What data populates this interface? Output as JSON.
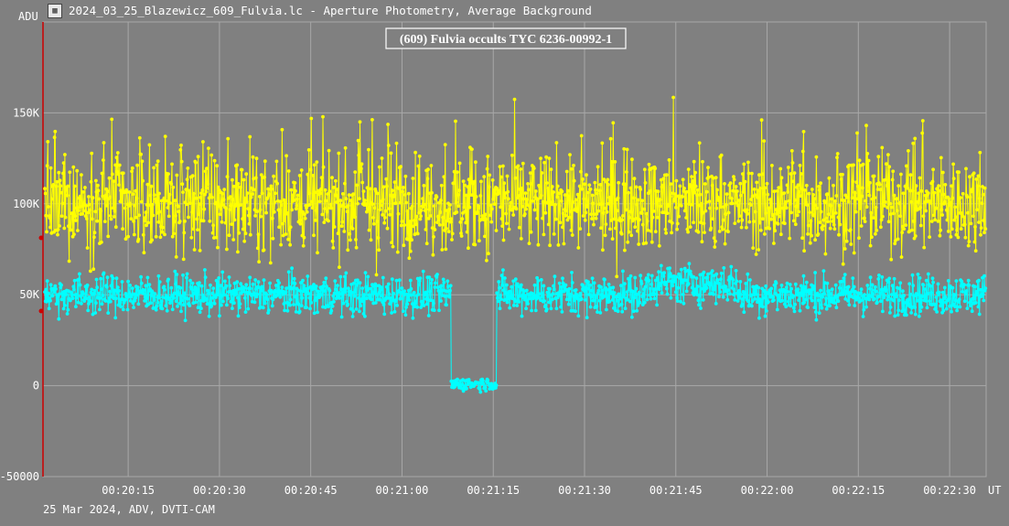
{
  "window": {
    "icon": "chart-app-icon",
    "title": "2024_03_25_Blazewicz_609_Fulvia.lc - Aperture Photometry, Average Background"
  },
  "footer": "25 Mar 2024, ADV, DVTI-CAM",
  "colors": {
    "background": "#808080",
    "grid": "#a8a8a8",
    "axis_text": "#ffffff",
    "target_series": "#00ffff",
    "comparison_series": "#ffff00",
    "cursor_line": "#cc0000"
  },
  "chart_data": {
    "type": "line",
    "title": "(609) Fulvia occults TYC 6236-00992-1",
    "ylabel": "ADU",
    "xlabel": "UT",
    "ylim": [
      -50000,
      200000
    ],
    "y_ticks": [
      -50000,
      0,
      50000,
      100000,
      150000
    ],
    "y_tick_labels": [
      "-50000",
      "0",
      "50K",
      "100K",
      "150K"
    ],
    "x_range_seconds": [
      1201,
      1356
    ],
    "x_ticks": [
      "00:20:15",
      "00:20:30",
      "00:20:45",
      "00:21:00",
      "00:21:15",
      "00:21:30",
      "00:21:45",
      "00:22:00",
      "00:22:15",
      "00:22:30"
    ],
    "x_tick_seconds": [
      1215,
      1230,
      1245,
      1260,
      1275,
      1290,
      1305,
      1320,
      1335,
      1350
    ],
    "grid": true,
    "frame_interval_s": 0.1,
    "series": [
      {
        "role": "comparison",
        "color": "#ffff00",
        "mean": 100000,
        "spread": 18000,
        "high_noise_window": [
          1251,
          1258
        ]
      },
      {
        "role": "target",
        "color": "#00ffff",
        "mean": 50000,
        "spread": 9000,
        "event": {
          "disappearance": 1268.0,
          "reappearance": 1275.5,
          "level_during": 1000
        }
      }
    ]
  }
}
